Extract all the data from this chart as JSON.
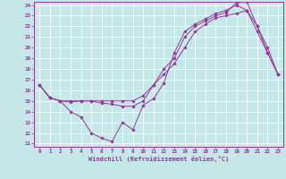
{
  "xlabel": "Windchill (Refroidissement éolien,°C)",
  "bg_color": "#c4e8e8",
  "line_color": "#993399",
  "grid_color": "#ffffff",
  "xlim": [
    -0.5,
    23.5
  ],
  "ylim": [
    10.7,
    24.3
  ],
  "xticks": [
    0,
    1,
    2,
    3,
    4,
    5,
    6,
    7,
    8,
    9,
    10,
    11,
    12,
    13,
    14,
    15,
    16,
    17,
    18,
    19,
    20,
    21,
    22,
    23
  ],
  "yticks": [
    11,
    12,
    13,
    14,
    15,
    16,
    17,
    18,
    19,
    20,
    21,
    22,
    23,
    24
  ],
  "line1_x": [
    0,
    1,
    2,
    3,
    4,
    5,
    6,
    7,
    8,
    9,
    10,
    11,
    12,
    13,
    14,
    15,
    16,
    17,
    18,
    19,
    20,
    21,
    22,
    23
  ],
  "line1_y": [
    16.5,
    15.3,
    15.0,
    14.0,
    13.5,
    12.0,
    11.5,
    11.2,
    13.0,
    12.3,
    14.6,
    15.2,
    16.7,
    19.5,
    21.5,
    22.2,
    22.7,
    23.2,
    23.5,
    24.0,
    23.5,
    21.5,
    19.5,
    17.5
  ],
  "line2_x": [
    0,
    1,
    2,
    3,
    4,
    5,
    6,
    7,
    8,
    9,
    10,
    11,
    12,
    13,
    14,
    15,
    16,
    17,
    18,
    19,
    20,
    21,
    22,
    23
  ],
  "line2_y": [
    16.5,
    15.3,
    15.0,
    14.9,
    15.0,
    15.0,
    14.8,
    14.7,
    14.5,
    14.5,
    15.0,
    16.5,
    18.0,
    19.0,
    21.0,
    22.0,
    22.5,
    23.0,
    23.3,
    24.2,
    24.3,
    22.0,
    20.0,
    17.5
  ],
  "line3_x": [
    0,
    1,
    2,
    3,
    4,
    5,
    6,
    7,
    8,
    9,
    10,
    11,
    12,
    13,
    14,
    15,
    16,
    17,
    18,
    19,
    20,
    21,
    22,
    23
  ],
  "line3_y": [
    16.5,
    15.3,
    15.0,
    15.0,
    15.0,
    15.0,
    15.0,
    15.0,
    15.0,
    15.0,
    15.5,
    16.5,
    17.5,
    18.5,
    20.0,
    21.5,
    22.2,
    22.8,
    23.0,
    23.2,
    23.5,
    22.0,
    19.5,
    17.5
  ]
}
